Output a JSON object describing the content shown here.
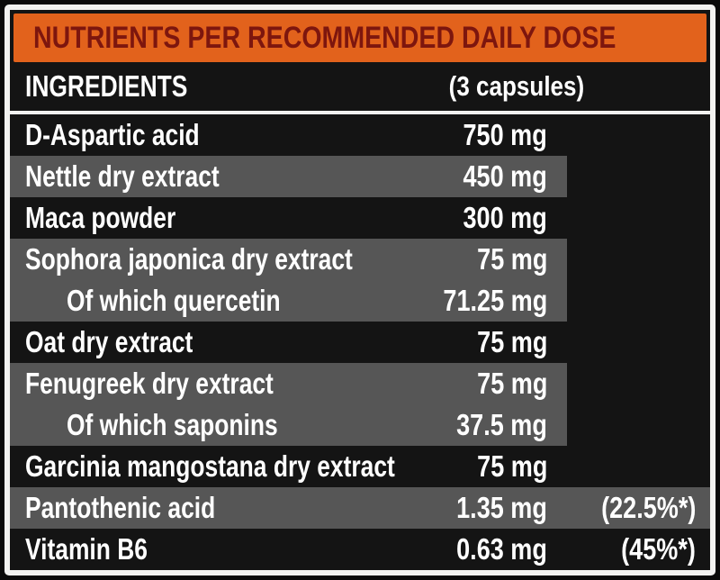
{
  "header": {
    "title": "NUTRIENTS PER RECOMMENDED DAILY DOSE"
  },
  "columns": {
    "ingredients": "INGREDIENTS",
    "dose": "(3 capsules)"
  },
  "colors": {
    "accent_orange": "#e2621c",
    "header_text": "#7d160e",
    "stripe_gray": "#565656",
    "table_black": "#141414",
    "frame_white": "#f2f2f0"
  },
  "rows": [
    {
      "label": "D-Aspartic acid",
      "amount": "750 mg",
      "percent": "",
      "stripe": "none",
      "indent": false
    },
    {
      "label": "Nettle dry extract",
      "amount": "450 mg",
      "percent": "",
      "stripe": "partial",
      "indent": false
    },
    {
      "label": "Maca powder",
      "amount": "300 mg",
      "percent": "",
      "stripe": "none",
      "indent": false
    },
    {
      "label": "Sophora japonica dry extract",
      "amount": "75 mg",
      "percent": "",
      "stripe": "partial",
      "indent": false
    },
    {
      "label": "Of which quercetin",
      "amount": "71.25 mg",
      "percent": "",
      "stripe": "partial",
      "indent": true
    },
    {
      "label": "Oat dry extract",
      "amount": "75 mg",
      "percent": "",
      "stripe": "none",
      "indent": false
    },
    {
      "label": "Fenugreek dry extract",
      "amount": "75 mg",
      "percent": "",
      "stripe": "partial",
      "indent": false
    },
    {
      "label": "Of which saponins",
      "amount": "37.5 mg",
      "percent": "",
      "stripe": "partial",
      "indent": true
    },
    {
      "label": "Garcinia mangostana dry extract",
      "amount": "75 mg",
      "percent": "",
      "stripe": "none",
      "indent": false
    },
    {
      "label": "Pantothenic acid",
      "amount": "1.35 mg",
      "percent": "(22.5%*)",
      "stripe": "full",
      "indent": false
    },
    {
      "label": "Vitamin B6",
      "amount": "0.63 mg",
      "percent": "(45%*)",
      "stripe": "none",
      "indent": false
    }
  ]
}
